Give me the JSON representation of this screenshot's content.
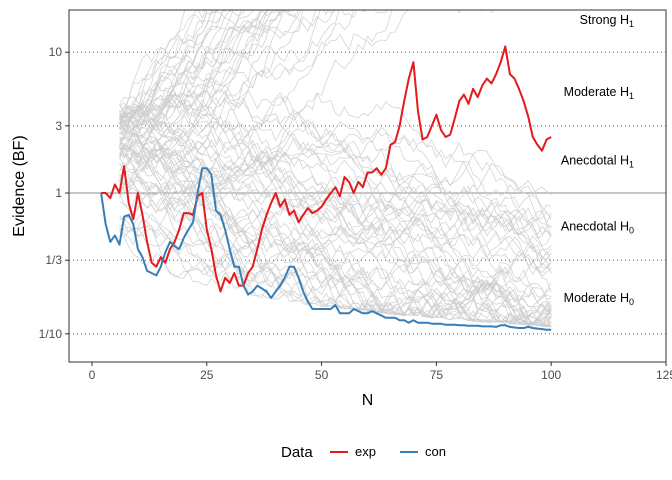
{
  "chart_data": {
    "type": "line",
    "xlabel": "N",
    "ylabel": "Evidence (BF)",
    "xlim": [
      -5,
      125
    ],
    "ylim_log10": [
      -1.2,
      1.3
    ],
    "y_scale": "log",
    "x_ticks": [
      0,
      25,
      50,
      75,
      100,
      125
    ],
    "x_tick_labels": [
      "0",
      "25",
      "50",
      "75",
      "100",
      "125"
    ],
    "y_ticks": [
      0.1,
      0.3333,
      1,
      3,
      10
    ],
    "y_tick_labels": [
      "1/10",
      "1/3",
      "1",
      "3",
      "10"
    ],
    "reference_line_y": 1,
    "dotted_lines_y": [
      0.1,
      0.3333,
      3,
      10
    ],
    "annotations": [
      {
        "main": "Strong H",
        "sub": "1",
        "x": 100,
        "y": 17
      },
      {
        "main": "Moderate H",
        "sub": "1",
        "x": 100,
        "y": 5.2
      },
      {
        "main": "Anecdotal H",
        "sub": "1",
        "x": 100,
        "y": 1.7
      },
      {
        "main": "Anecdotal H",
        "sub": "0",
        "x": 100,
        "y": 0.58
      },
      {
        "main": "Moderate H",
        "sub": "0",
        "x": 100,
        "y": 0.18
      }
    ],
    "background_simulations": {
      "count": 80,
      "color": "#cccccc",
      "n_from": 6,
      "n_to": 100
    },
    "legend": {
      "title": "Data",
      "position": "bottom",
      "entries": [
        {
          "label": "exp",
          "color": "#e41a1c"
        },
        {
          "label": "con",
          "color": "#377eb8"
        }
      ]
    },
    "series": [
      {
        "name": "exp",
        "color": "#e41a1c",
        "x": [
          2,
          3,
          4,
          5,
          6,
          7,
          8,
          9,
          10,
          11,
          12,
          13,
          14,
          15,
          16,
          17,
          18,
          19,
          20,
          21,
          22,
          23,
          24,
          25,
          26,
          27,
          28,
          29,
          30,
          31,
          32,
          33,
          34,
          35,
          36,
          37,
          38,
          39,
          40,
          41,
          42,
          43,
          44,
          45,
          46,
          47,
          48,
          49,
          50,
          51,
          52,
          53,
          54,
          55,
          56,
          57,
          58,
          59,
          60,
          61,
          62,
          63,
          64,
          65,
          66,
          67,
          68,
          69,
          70,
          71,
          72,
          73,
          74,
          75,
          76,
          77,
          78,
          79,
          80,
          81,
          82,
          83,
          84,
          85,
          86,
          87,
          88,
          89,
          90,
          91,
          92,
          93,
          94,
          95,
          96,
          97,
          98,
          99,
          100
        ],
        "y": [
          1.0,
          1.0,
          0.92,
          1.15,
          1.0,
          1.55,
          0.85,
          0.65,
          1.0,
          0.7,
          0.45,
          0.32,
          0.3,
          0.35,
          0.32,
          0.4,
          0.45,
          0.55,
          0.72,
          0.72,
          0.7,
          0.95,
          1.0,
          0.55,
          0.4,
          0.26,
          0.2,
          0.25,
          0.23,
          0.27,
          0.22,
          0.22,
          0.27,
          0.3,
          0.4,
          0.55,
          0.7,
          0.85,
          1.0,
          0.8,
          0.9,
          0.7,
          0.75,
          0.62,
          0.7,
          0.78,
          0.72,
          0.75,
          0.8,
          0.9,
          1.0,
          1.1,
          0.95,
          1.3,
          1.2,
          1.0,
          1.2,
          1.1,
          1.4,
          1.4,
          1.5,
          1.35,
          1.5,
          2.2,
          2.3,
          3.0,
          4.5,
          6.5,
          8.5,
          3.8,
          2.4,
          2.5,
          3.0,
          3.6,
          2.8,
          2.5,
          2.6,
          3.4,
          4.5,
          5.0,
          4.3,
          5.5,
          4.8,
          5.8,
          6.5,
          6.0,
          7.0,
          8.5,
          11.0,
          7.0,
          6.5,
          5.5,
          4.5,
          3.5,
          2.5,
          2.2,
          2.0,
          2.4,
          2.5
        ]
      },
      {
        "name": "con",
        "color": "#377eb8",
        "x": [
          2,
          3,
          4,
          5,
          6,
          7,
          8,
          9,
          10,
          11,
          12,
          13,
          14,
          15,
          16,
          17,
          18,
          19,
          20,
          21,
          22,
          23,
          24,
          25,
          26,
          27,
          28,
          29,
          30,
          31,
          32,
          33,
          34,
          35,
          36,
          37,
          38,
          39,
          40,
          41,
          42,
          43,
          44,
          45,
          46,
          47,
          48,
          49,
          50,
          51,
          52,
          53,
          54,
          55,
          56,
          57,
          58,
          59,
          60,
          61,
          62,
          63,
          64,
          65,
          66,
          67,
          68,
          69,
          70,
          71,
          72,
          73,
          74,
          75,
          76,
          77,
          78,
          79,
          80,
          81,
          82,
          83,
          84,
          85,
          86,
          87,
          88,
          89,
          90,
          91,
          92,
          93,
          94,
          95,
          96,
          97,
          98,
          99,
          100
        ],
        "y": [
          1.0,
          0.6,
          0.45,
          0.5,
          0.43,
          0.68,
          0.7,
          0.6,
          0.4,
          0.35,
          0.28,
          0.27,
          0.26,
          0.3,
          0.38,
          0.45,
          0.42,
          0.4,
          0.48,
          0.55,
          0.62,
          1.0,
          1.5,
          1.5,
          1.35,
          0.75,
          0.7,
          0.55,
          0.4,
          0.3,
          0.3,
          0.22,
          0.19,
          0.2,
          0.22,
          0.21,
          0.2,
          0.18,
          0.2,
          0.22,
          0.25,
          0.3,
          0.3,
          0.25,
          0.2,
          0.17,
          0.15,
          0.15,
          0.15,
          0.15,
          0.15,
          0.16,
          0.14,
          0.14,
          0.14,
          0.15,
          0.145,
          0.14,
          0.14,
          0.145,
          0.14,
          0.135,
          0.13,
          0.13,
          0.13,
          0.125,
          0.125,
          0.12,
          0.125,
          0.12,
          0.12,
          0.12,
          0.118,
          0.118,
          0.118,
          0.116,
          0.116,
          0.116,
          0.115,
          0.115,
          0.114,
          0.114,
          0.114,
          0.113,
          0.113,
          0.113,
          0.112,
          0.115,
          0.115,
          0.112,
          0.111,
          0.11,
          0.11,
          0.112,
          0.11,
          0.109,
          0.108,
          0.107,
          0.107
        ]
      }
    ]
  }
}
